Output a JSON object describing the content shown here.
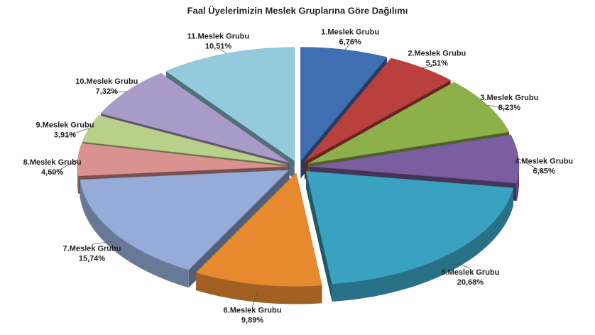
{
  "chart_data": {
    "type": "pie",
    "title": "Faal Üyelerimizin Meslek Gruplarına Göre Dağılımı",
    "categories": [
      "1.Meslek Grubu",
      "2.Meslek Grubu",
      "3.Meslek Grubu",
      "4.Meslek Grubu",
      "5.Meslek Grubu",
      "6.Meslek Grubu",
      "7.Meslek Grubu",
      "8.Meslek Grubu",
      "9.Meslek Grubu",
      "10.Meslek Grubu",
      "11.Meslek Grubu"
    ],
    "values": [
      6.76,
      5.51,
      8.23,
      6.85,
      20.68,
      9.89,
      15.74,
      4.6,
      3.91,
      7.32,
      10.51
    ],
    "value_labels": [
      "6,76%",
      "5,51%",
      "8,23%",
      "6,85%",
      "20,68%",
      "9,89%",
      "15,74%",
      "4,60%",
      "3,91%",
      "7,32%",
      "10,51%"
    ],
    "colors": [
      "#3f6fb0",
      "#b9403d",
      "#8db04a",
      "#7a5ea0",
      "#3aa2c0",
      "#e6892f",
      "#95acd8",
      "#d9928f",
      "#b8d08a",
      "#aa9ac8",
      "#93cbdd"
    ]
  }
}
